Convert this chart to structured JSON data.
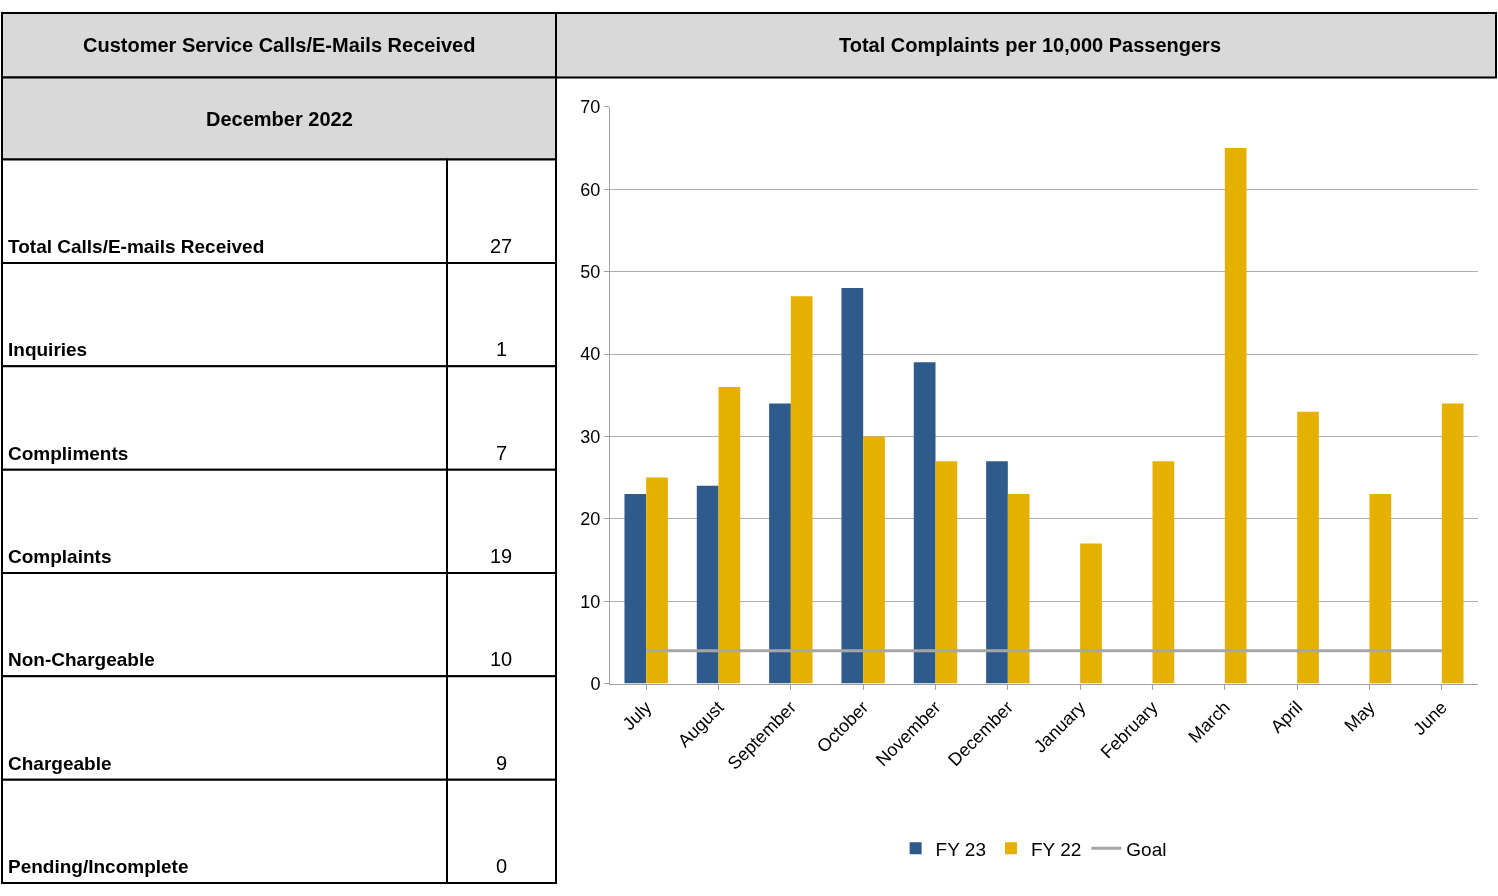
{
  "chart_data": [
    {
      "type": "other",
      "title": "Customer Service Calls/E-Mails Received",
      "subtitle": "December 2022",
      "categories": [
        "Total Calls/E-mails Received",
        "Inquiries",
        "Compliments",
        "Complaints",
        "Non-Chargeable",
        "Chargeable",
        "Pending/Incomplete"
      ],
      "values": [
        27,
        1,
        7,
        19,
        10,
        9,
        0
      ],
      "data_labels": true
    },
    {
      "type": "bar",
      "title": "Total Complaints per 10,000 Passengers",
      "categories": [
        "July",
        "August",
        "September",
        "October",
        "November",
        "December",
        "January",
        "February",
        "March",
        "April",
        "May",
        "June"
      ],
      "series": [
        {
          "name": "FY 23",
          "color": "#2f5b8c",
          "values": [
            23,
            24,
            34,
            48,
            39,
            27,
            null,
            null,
            null,
            null,
            null,
            null
          ]
        },
        {
          "name": "FY 22",
          "color": "#e6b000",
          "values": [
            25,
            36,
            47,
            30,
            27,
            23,
            17,
            27,
            65,
            33,
            23,
            34
          ]
        },
        {
          "name": "Goal",
          "type": "line",
          "color": "#a6a6a6",
          "values": [
            4,
            4,
            4,
            4,
            4,
            4,
            4,
            4,
            4,
            4,
            4,
            4
          ]
        }
      ],
      "ylim": [
        0,
        70
      ],
      "yticks": [
        0,
        10,
        20,
        30,
        40,
        50,
        60,
        70
      ],
      "grid": "y",
      "legend": "bottom"
    }
  ]
}
